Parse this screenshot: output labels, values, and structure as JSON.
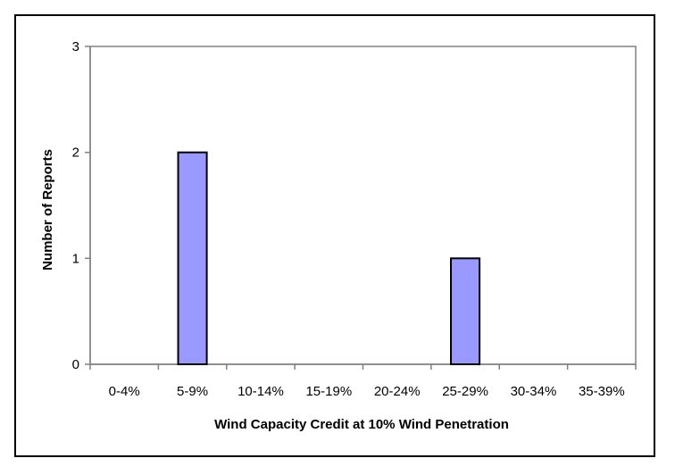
{
  "chart_data": {
    "type": "bar",
    "title": "",
    "xlabel": "Wind Capacity Credit at 10% Wind Penetration",
    "ylabel": "Number of Reports",
    "categories": [
      "0-4%",
      "5-9%",
      "10-14%",
      "15-19%",
      "20-24%",
      "25-29%",
      "30-34%",
      "35-39%"
    ],
    "values": [
      0,
      2,
      0,
      0,
      0,
      1,
      0,
      0
    ],
    "ylim": [
      0,
      3
    ],
    "yticks": [
      0,
      1,
      2,
      3
    ],
    "grid": false,
    "legend": "none",
    "bar_color": "#9999ff",
    "bar_border_color": "#000000",
    "plot_border_color": "#808080"
  }
}
